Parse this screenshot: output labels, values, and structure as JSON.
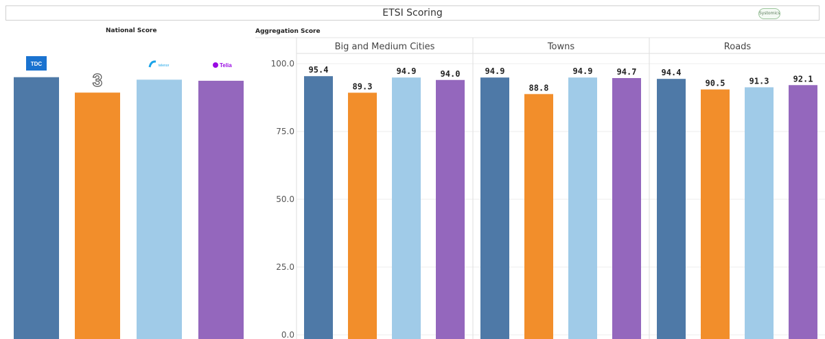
{
  "header": {
    "title": "ETSI Scoring",
    "brand_logo_text": "Systomics"
  },
  "national": {
    "section_title": "National Score",
    "operators": [
      {
        "logo_text": "TDC",
        "value": 95.1,
        "label": "95.1",
        "color": "#4e79a7"
      },
      {
        "logo_text": "3",
        "value": 89.5,
        "label": "89.5",
        "color": "#f28e2b"
      },
      {
        "logo_text": "telenor",
        "value": 94.2,
        "label": "94.2",
        "color": "#a0cbe8"
      },
      {
        "logo_text": "Telia",
        "value": 93.8,
        "label": "93.8",
        "color": "#9467bd"
      }
    ]
  },
  "chart_data": [
    {
      "type": "bar",
      "title": "National Score",
      "categories": [
        "TDC",
        "3",
        "telenor",
        "Telia"
      ],
      "values": [
        95.1,
        89.5,
        94.2,
        93.8
      ],
      "colors": [
        "#4e79a7",
        "#f28e2b",
        "#a0cbe8",
        "#9467bd"
      ]
    },
    {
      "type": "bar",
      "title": "Aggregation Score",
      "groups": [
        "Big and Medium Cities",
        "Towns",
        "Roads"
      ],
      "series": [
        {
          "name": "TDC",
          "color": "#4e79a7",
          "values": [
            95.4,
            94.9,
            94.4
          ]
        },
        {
          "name": "3",
          "color": "#f28e2b",
          "values": [
            89.3,
            88.8,
            90.5
          ]
        },
        {
          "name": "telenor",
          "color": "#a0cbe8",
          "values": [
            94.9,
            94.9,
            91.3
          ]
        },
        {
          "name": "Telia",
          "color": "#9467bd",
          "values": [
            94.0,
            94.7,
            92.1
          ]
        }
      ],
      "yticks": [
        "100.0",
        "75.0",
        "50.0",
        "25.0",
        "0.0"
      ],
      "ylim": [
        0,
        100
      ],
      "grid": true
    }
  ],
  "aggregation": {
    "section_title": "Aggregation Score"
  }
}
